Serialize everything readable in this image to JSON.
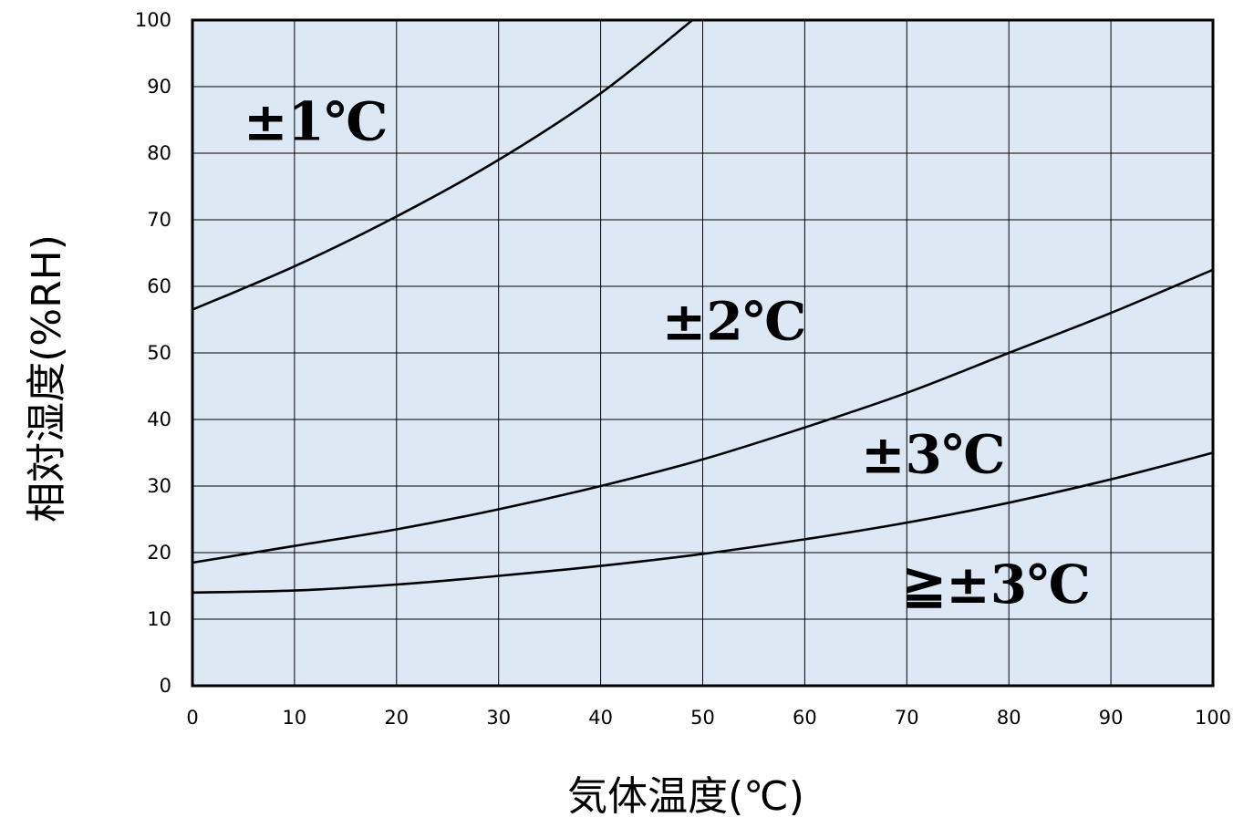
{
  "chart_data": {
    "type": "line",
    "xlabel": "気体温度(℃)",
    "ylabel": "相対湿度(%RH)",
    "xlim": [
      0,
      100
    ],
    "ylim": [
      0,
      100
    ],
    "x_ticks": [
      "0",
      "10",
      "20",
      "30",
      "40",
      "50",
      "60",
      "70",
      "80",
      "90",
      "100"
    ],
    "y_ticks": [
      "0",
      "10",
      "20",
      "30",
      "40",
      "50",
      "60",
      "70",
      "80",
      "90",
      "100"
    ],
    "grid": true,
    "plot_background": "#dce9f5",
    "line_color": "#000000",
    "series": [
      {
        "x": [
          0,
          10,
          20,
          30,
          40,
          49
        ],
        "y": [
          56.5,
          63,
          70.5,
          79,
          89,
          100
        ]
      },
      {
        "x": [
          0,
          10,
          20,
          30,
          40,
          50,
          60,
          70,
          80,
          90,
          100
        ],
        "y": [
          18.5,
          21,
          23.5,
          26.5,
          30,
          34,
          38.8,
          44,
          50,
          56,
          62.5
        ]
      },
      {
        "x": [
          0,
          10,
          20,
          30,
          40,
          50,
          60,
          70,
          80,
          90,
          100
        ],
        "y": [
          14,
          14.3,
          15.2,
          16.5,
          18,
          19.8,
          22,
          24.5,
          27.5,
          31,
          35
        ]
      }
    ],
    "annotations": [
      {
        "text": "±1℃",
        "x": 5,
        "y": 82
      },
      {
        "text": "±2℃",
        "x": 46,
        "y": 52
      },
      {
        "text": "±3℃",
        "x": 65.5,
        "y": 32
      },
      {
        "text": "≧±3℃",
        "x": 69.5,
        "y": 12.5
      }
    ]
  }
}
